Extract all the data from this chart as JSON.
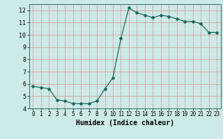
{
  "x": [
    0,
    1,
    2,
    3,
    4,
    5,
    6,
    7,
    8,
    9,
    10,
    11,
    12,
    13,
    14,
    15,
    16,
    17,
    18,
    19,
    20,
    21,
    22,
    23
  ],
  "y": [
    5.8,
    5.7,
    5.6,
    4.7,
    4.6,
    4.4,
    4.4,
    4.4,
    4.6,
    5.6,
    6.5,
    9.7,
    12.2,
    11.8,
    11.6,
    11.4,
    11.6,
    11.5,
    11.3,
    11.1,
    11.1,
    10.9,
    10.2,
    10.2
  ],
  "xlabel": "Humidex (Indice chaleur)",
  "ylim": [
    4,
    12.5
  ],
  "xlim": [
    -0.5,
    23.5
  ],
  "line_color": "#1a6b5a",
  "bg_color": "#cceae8",
  "grid_color_major": "#f0c8c8",
  "grid_color_minor": "#e8e8e8",
  "major_yticks": [
    4,
    5,
    6,
    7,
    8,
    9,
    10,
    11,
    12
  ],
  "minor_yticks_step": 0.5,
  "xticks": [
    0,
    1,
    2,
    3,
    4,
    5,
    6,
    7,
    8,
    9,
    10,
    11,
    12,
    13,
    14,
    15,
    16,
    17,
    18,
    19,
    20,
    21,
    22,
    23
  ]
}
